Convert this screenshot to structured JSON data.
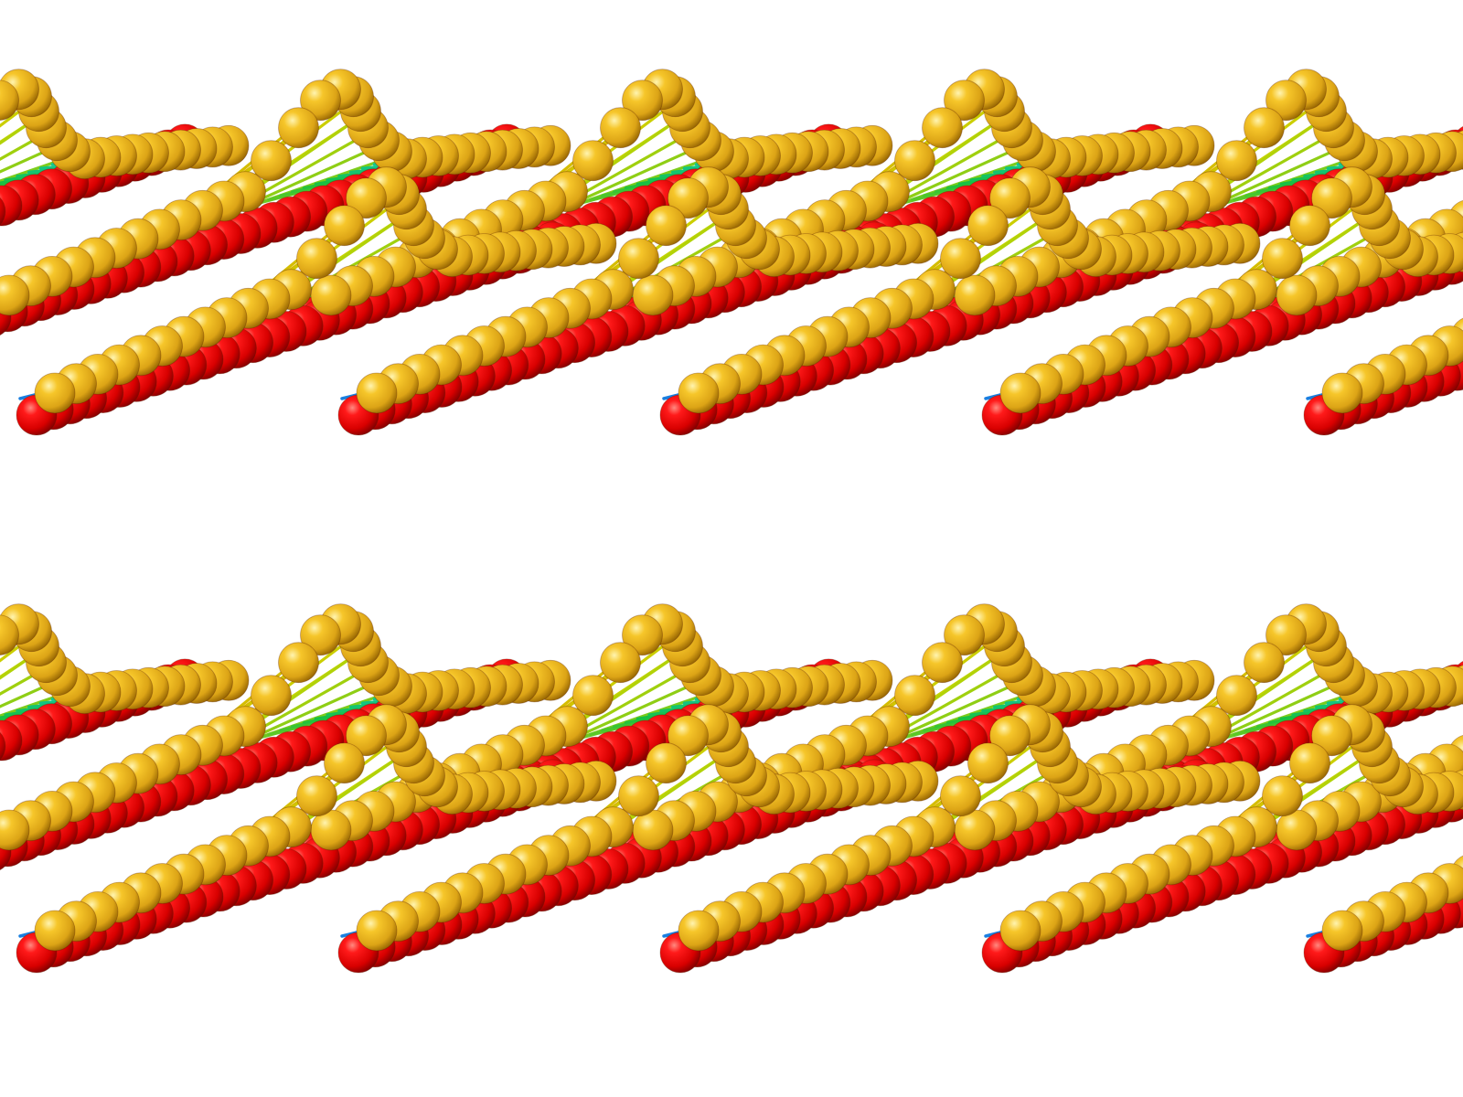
{
  "scene": {
    "description_free": true,
    "background": "#ffffff",
    "rows": 2,
    "units_per_row": 5,
    "colors": {
      "red_bead": "#e00000",
      "red_bead_highlight": "#ff6a5a",
      "red_bead_shadow": "#8a0000",
      "gold_bead": "#e8b21c",
      "gold_bead_highlight": "#fff0a0",
      "gold_bead_shadow": "#9c6a00",
      "stick_blue": "#1a7fe0",
      "stick_orange": "#f08a00",
      "stick_yellow": "#c8d400",
      "stick_green": "#18c040",
      "stick_teal": "#10c8a0"
    }
  }
}
